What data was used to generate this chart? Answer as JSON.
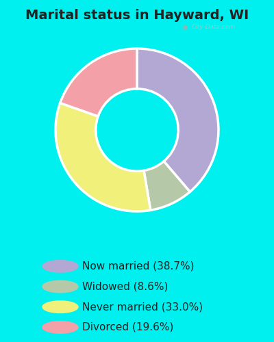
{
  "title": "Marital status in Hayward, WI",
  "categories": [
    "Now married",
    "Widowed",
    "Never married",
    "Divorced"
  ],
  "values": [
    38.7,
    8.6,
    33.0,
    19.6
  ],
  "colors": [
    "#b3a8d4",
    "#b5c9a8",
    "#f0f07a",
    "#f4a0a8"
  ],
  "legend_labels": [
    "Now married (38.7%)",
    "Widowed (8.6%)",
    "Never married (33.0%)",
    "Divorced (19.6%)"
  ],
  "chart_bg_color": "#cdecd8",
  "outer_bg_color": "#00f0f0",
  "title_fontsize": 14,
  "legend_fontsize": 11,
  "watermark": "City-Data.com"
}
